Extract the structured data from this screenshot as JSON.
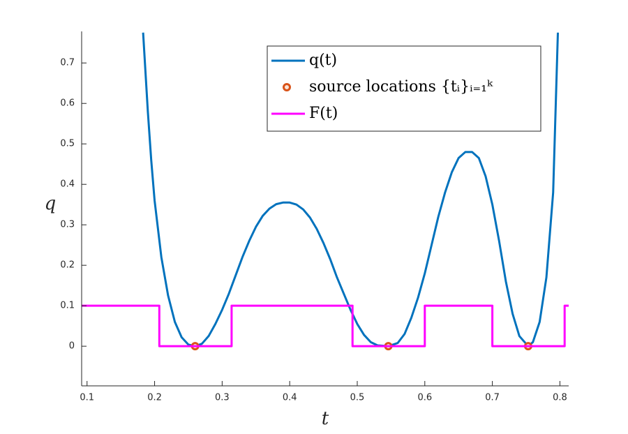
{
  "chart_data": {
    "type": "line",
    "xlabel": "t",
    "ylabel": "q",
    "xlim": [
      0.092,
      0.813
    ],
    "ylim": [
      -0.098,
      0.778
    ],
    "xticks": [
      0.1,
      0.2,
      0.3,
      0.4,
      0.5,
      0.6,
      0.7,
      0.8
    ],
    "yticks": [
      0,
      0.1,
      0.2,
      0.3,
      0.4,
      0.5,
      0.6,
      0.7
    ],
    "legend": "northeast",
    "series": [
      {
        "name": "q(t)",
        "color": "#0072bd",
        "kind": "line",
        "x": [
          0.183,
          0.19,
          0.195,
          0.2,
          0.21,
          0.22,
          0.23,
          0.24,
          0.25,
          0.26,
          0.27,
          0.28,
          0.29,
          0.3,
          0.31,
          0.32,
          0.33,
          0.34,
          0.35,
          0.36,
          0.37,
          0.38,
          0.39,
          0.4,
          0.41,
          0.42,
          0.43,
          0.44,
          0.45,
          0.46,
          0.47,
          0.48,
          0.49,
          0.5,
          0.51,
          0.52,
          0.53,
          0.546,
          0.56,
          0.57,
          0.58,
          0.59,
          0.6,
          0.61,
          0.62,
          0.63,
          0.64,
          0.65,
          0.66,
          0.67,
          0.68,
          0.69,
          0.7,
          0.71,
          0.72,
          0.73,
          0.74,
          0.753,
          0.76,
          0.77,
          0.78,
          0.79,
          0.797
        ],
        "values": [
          0.775,
          0.58,
          0.46,
          0.36,
          0.22,
          0.125,
          0.06,
          0.022,
          0.004,
          0,
          0.006,
          0.025,
          0.055,
          0.09,
          0.13,
          0.175,
          0.22,
          0.26,
          0.295,
          0.322,
          0.34,
          0.351,
          0.355,
          0.355,
          0.35,
          0.338,
          0.318,
          0.29,
          0.255,
          0.215,
          0.17,
          0.13,
          0.09,
          0.055,
          0.028,
          0.01,
          0.002,
          0,
          0.008,
          0.03,
          0.07,
          0.12,
          0.18,
          0.25,
          0.32,
          0.38,
          0.43,
          0.465,
          0.48,
          0.48,
          0.465,
          0.42,
          0.35,
          0.26,
          0.16,
          0.08,
          0.025,
          0,
          0.01,
          0.06,
          0.17,
          0.38,
          0.775
        ]
      },
      {
        "name": "source locations {tᵢ}ᵢ₌₁ᵏ",
        "color": "#d95319",
        "kind": "scatter",
        "x": [
          0.26,
          0.546,
          0.753
        ],
        "values": [
          0,
          0,
          0
        ]
      },
      {
        "name": "F(t)",
        "color": "#ff00ff",
        "kind": "line",
        "x": [
          0.092,
          0.207,
          0.207,
          0.314,
          0.314,
          0.493,
          0.493,
          0.6,
          0.6,
          0.7,
          0.7,
          0.807,
          0.807,
          0.813
        ],
        "values": [
          0.1,
          0.1,
          0,
          0,
          0.1,
          0.1,
          0,
          0,
          0.1,
          0.1,
          0,
          0,
          0.1,
          0.1
        ]
      }
    ]
  }
}
